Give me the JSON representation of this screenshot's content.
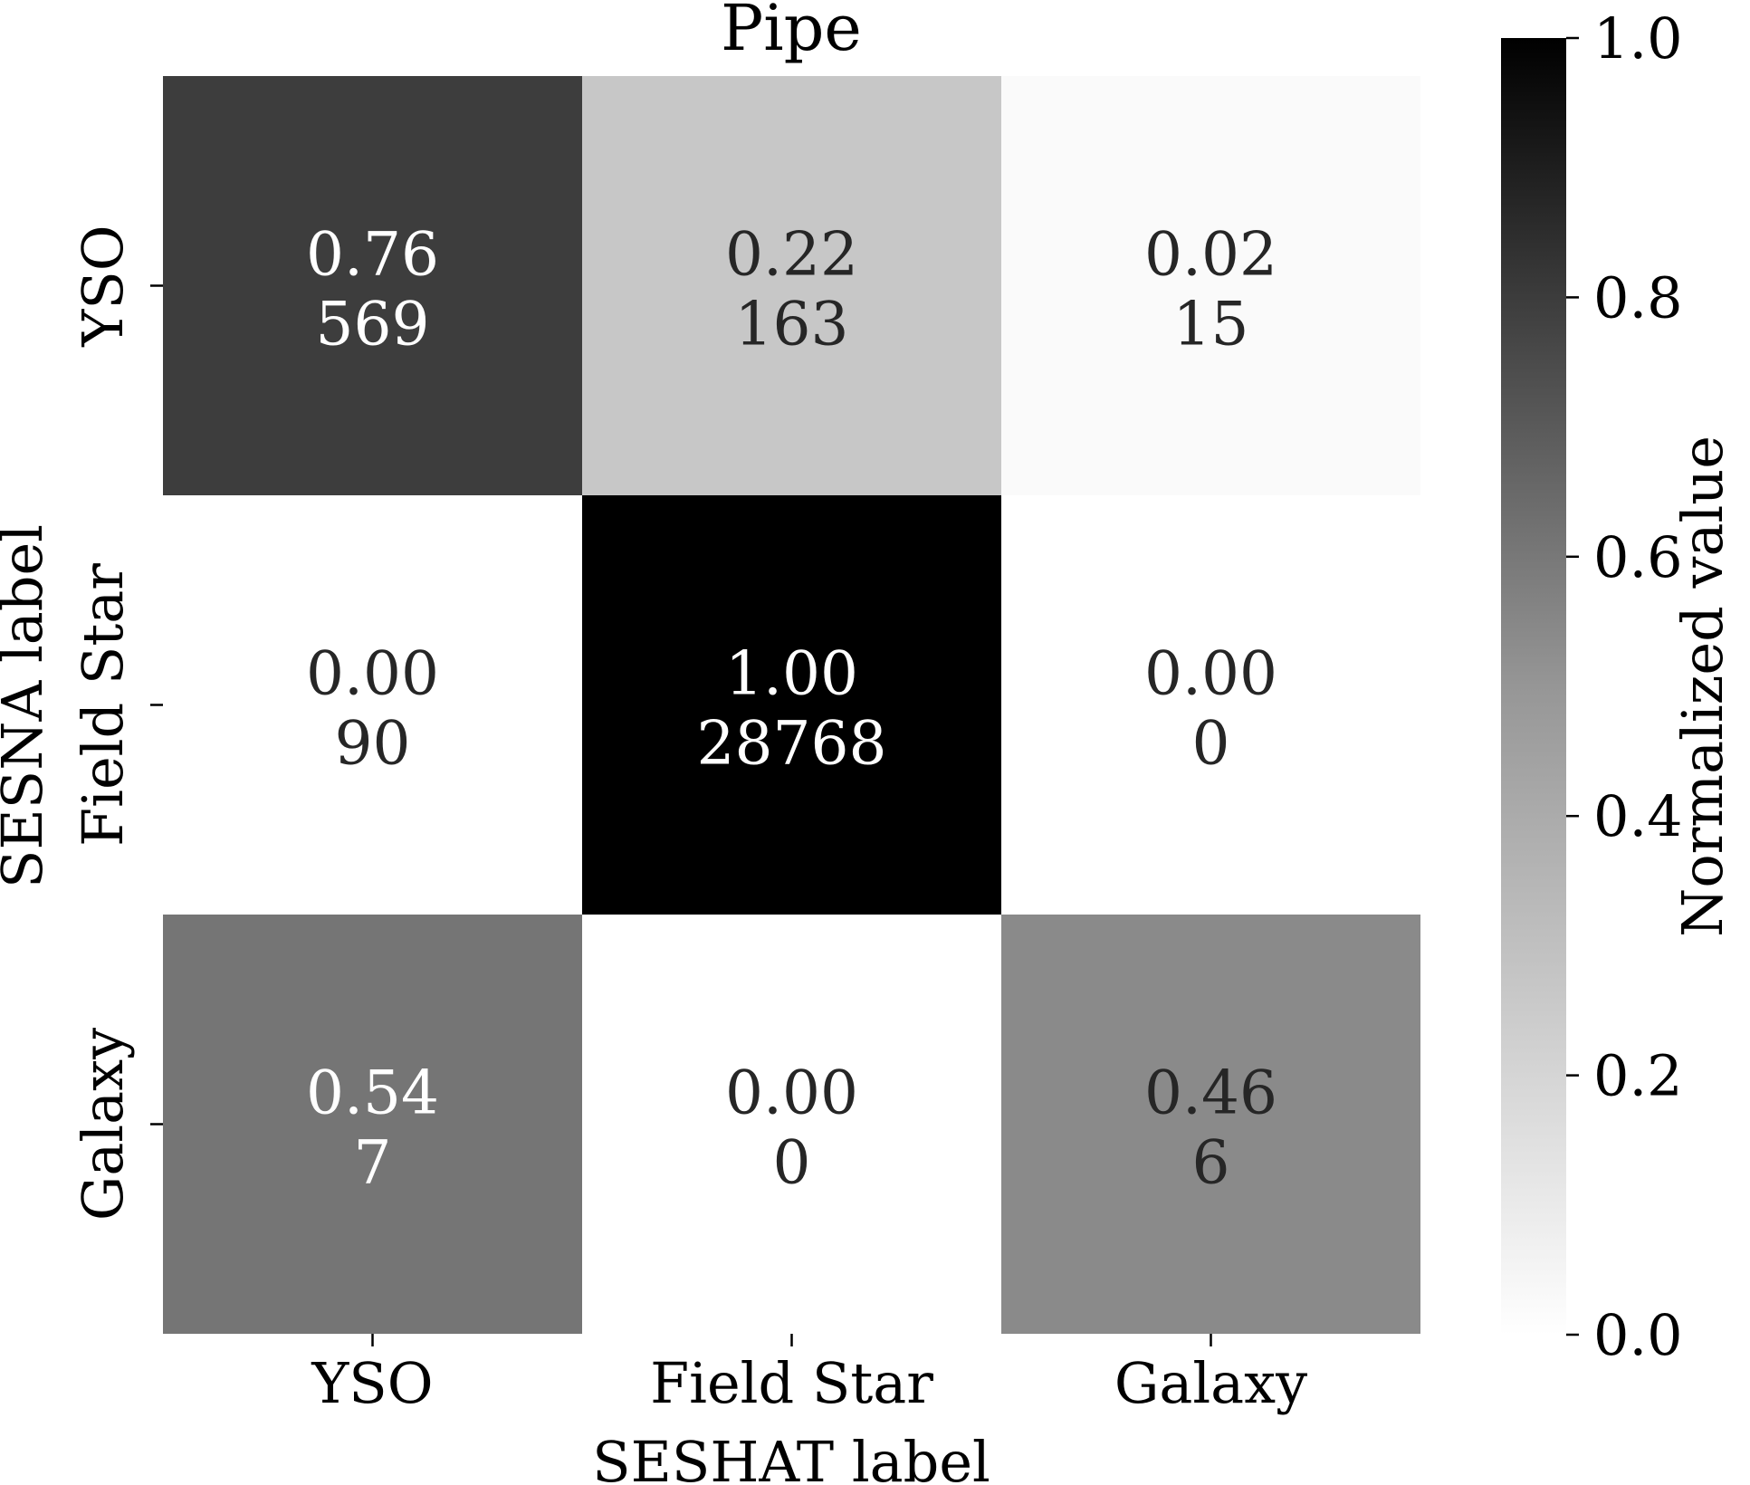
{
  "chart_data": {
    "type": "heatmap",
    "title": "Pipe",
    "xlabel": "SESHAT label",
    "ylabel": "SESNA label",
    "x_categories": [
      "YSO",
      "Field Star",
      "Galaxy"
    ],
    "y_categories": [
      "YSO",
      "Field Star",
      "Galaxy"
    ],
    "normalized": [
      [
        0.76,
        0.22,
        0.02
      ],
      [
        0.0,
        1.0,
        0.0
      ],
      [
        0.54,
        0.0,
        0.46
      ]
    ],
    "normalized_labels": [
      [
        "0.76",
        "0.22",
        "0.02"
      ],
      [
        "0.00",
        "1.00",
        "0.00"
      ],
      [
        "0.54",
        "0.00",
        "0.46"
      ]
    ],
    "counts": [
      [
        569,
        163,
        15
      ],
      [
        90,
        28768,
        0
      ],
      [
        7,
        0,
        6
      ]
    ],
    "colorbar": {
      "label": "Normalized value",
      "range": [
        0.0,
        1.0
      ],
      "ticks": [
        "0.0",
        "0.2",
        "0.4",
        "0.6",
        "0.8",
        "1.0"
      ],
      "colormap": "Greys",
      "low_color": "#ffffff",
      "high_color": "#000000"
    }
  }
}
